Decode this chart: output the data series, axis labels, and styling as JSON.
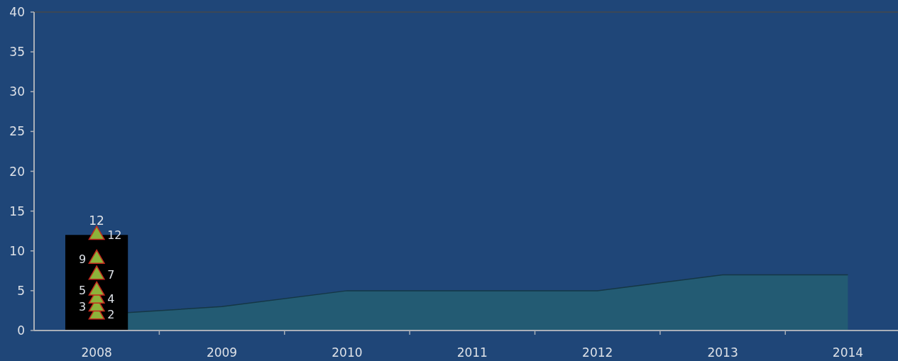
{
  "chart_data": {
    "type": "bar",
    "x": [
      2008,
      2009,
      2010,
      2011,
      2012,
      2013,
      2014
    ],
    "series": [
      {
        "type": "area",
        "color": "#235b73",
        "values": [
          2,
          3,
          5,
          5,
          5,
          7,
          7
        ]
      },
      {
        "color": "#000000",
        "values": [
          12,
          null,
          null,
          null,
          null,
          null,
          null
        ],
        "value_labels": [
          "12",
          null,
          null,
          null,
          null,
          null,
          null
        ]
      },
      {
        "type": "scatter",
        "color": "#8db33a",
        "marker": "triangle",
        "values": [
          2,
          null,
          null,
          null,
          null,
          null,
          null
        ],
        "value_labels": [
          "2",
          null,
          null,
          null,
          null,
          null,
          null
        ]
      },
      {
        "type": "scatter",
        "color": "#8db33a",
        "marker": "triangle",
        "values": [
          3,
          null,
          null,
          null,
          null,
          null,
          null
        ],
        "value_labels": [
          "3",
          null,
          null,
          null,
          null,
          null,
          null
        ]
      },
      {
        "type": "scatter",
        "color": "#8db33a",
        "marker": "triangle",
        "values": [
          4,
          null,
          null,
          null,
          null,
          null,
          null
        ],
        "value_labels": [
          "4",
          null,
          null,
          null,
          null,
          null,
          null
        ]
      },
      {
        "type": "scatter",
        "color": "#8db33a",
        "marker": "triangle",
        "values": [
          5,
          null,
          null,
          null,
          null,
          null,
          null
        ],
        "value_labels": [
          "5",
          null,
          null,
          null,
          null,
          null,
          null
        ]
      },
      {
        "type": "scatter",
        "color": "#8db33a",
        "marker": "triangle",
        "values": [
          7,
          null,
          null,
          null,
          null,
          null,
          null
        ],
        "value_labels": [
          "7",
          null,
          null,
          null,
          null,
          null,
          null
        ]
      },
      {
        "type": "scatter",
        "color": "#8db33a",
        "marker": "triangle",
        "values": [
          9,
          null,
          null,
          null,
          null,
          null,
          null
        ],
        "value_labels": [
          "9",
          null,
          null,
          null,
          null,
          null,
          null
        ]
      },
      {
        "type": "scatter",
        "color": "#8db33a",
        "marker": "triangle",
        "values": [
          12,
          null,
          null,
          null,
          null,
          null,
          null
        ],
        "value_labels": [
          "12",
          null,
          null,
          null,
          null,
          null,
          null
        ]
      }
    ],
    "xlim": [
      2007.5,
      2014.4
    ],
    "xticks": [
      2008,
      {
        "value": 2008.5,
        "label": null
      },
      2009,
      {
        "value": 2009.5,
        "label": null
      },
      2010,
      {
        "value": 2010.5,
        "label": null
      },
      2011,
      {
        "value": 2011.5,
        "label": null
      },
      2012,
      {
        "value": 2012.5,
        "label": null
      },
      2013,
      {
        "value": 2013.5,
        "label": null
      },
      2014
    ],
    "ylim": [
      0,
      40
    ],
    "yticks": [
      0,
      5,
      10,
      15,
      20,
      25,
      30,
      35,
      40
    ]
  }
}
